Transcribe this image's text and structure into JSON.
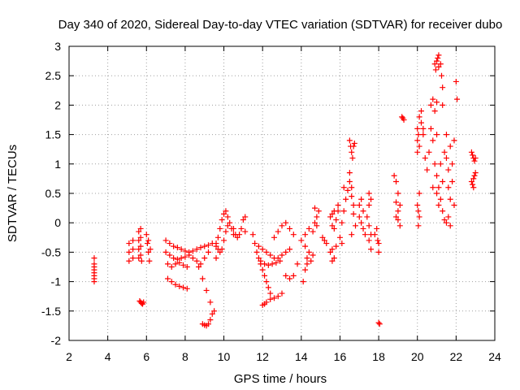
{
  "chart_data": {
    "type": "scatter",
    "title": "Day 340 of 2020, Sidereal Day-to-day VTEC variation (SDTVAR) for receiver dubo",
    "xlabel": "GPS time / hours",
    "ylabel": "SDTVAR / TECUs",
    "xlim": [
      2,
      24
    ],
    "ylim": [
      -2,
      3
    ],
    "xticks": [
      "2",
      "4",
      "6",
      "8",
      "10",
      "12",
      "14",
      "16",
      "18",
      "20",
      "22",
      "24"
    ],
    "yticks": [
      "-2",
      "-1.5",
      "-1",
      "-0.5",
      "0",
      "0.5",
      "1",
      "1.5",
      "2",
      "2.5",
      "3"
    ],
    "grid": true,
    "marker": "+",
    "color": "#ff0000",
    "series": [
      {
        "name": "dubo",
        "points": [
          [
            3.3,
            -0.6
          ],
          [
            3.3,
            -0.7
          ],
          [
            3.3,
            -0.75
          ],
          [
            3.3,
            -0.8
          ],
          [
            3.3,
            -0.85
          ],
          [
            3.3,
            -0.9
          ],
          [
            3.3,
            -0.95
          ],
          [
            3.3,
            -1.0
          ],
          [
            5.1,
            -0.35
          ],
          [
            5.1,
            -0.5
          ],
          [
            5.1,
            -0.65
          ],
          [
            5.3,
            -0.3
          ],
          [
            5.3,
            -0.45
          ],
          [
            5.3,
            -0.6
          ],
          [
            5.6,
            -0.15
          ],
          [
            5.6,
            -0.3
          ],
          [
            5.6,
            -0.45
          ],
          [
            5.6,
            -0.6
          ],
          [
            5.7,
            -0.1
          ],
          [
            5.7,
            -0.25
          ],
          [
            5.7,
            -0.4
          ],
          [
            5.7,
            -0.55
          ],
          [
            5.75,
            -0.65
          ],
          [
            5.65,
            -1.33
          ],
          [
            5.7,
            -1.35
          ],
          [
            5.75,
            -1.37
          ],
          [
            5.8,
            -1.38
          ],
          [
            5.85,
            -1.35
          ],
          [
            6.0,
            -0.2
          ],
          [
            6.05,
            -0.35
          ],
          [
            6.1,
            -0.5
          ],
          [
            6.15,
            -0.65
          ],
          [
            6.2,
            -0.45
          ],
          [
            6.1,
            -0.3
          ],
          [
            7.0,
            -0.3
          ],
          [
            7.2,
            -0.35
          ],
          [
            7.4,
            -0.4
          ],
          [
            7.6,
            -0.42
          ],
          [
            7.8,
            -0.45
          ],
          [
            8.0,
            -0.48
          ],
          [
            8.2,
            -0.5
          ],
          [
            8.4,
            -0.48
          ],
          [
            8.6,
            -0.45
          ],
          [
            8.8,
            -0.42
          ],
          [
            9.0,
            -0.4
          ],
          [
            9.2,
            -0.38
          ],
          [
            9.4,
            -0.35
          ],
          [
            7.0,
            -0.5
          ],
          [
            7.2,
            -0.55
          ],
          [
            7.4,
            -0.6
          ],
          [
            7.6,
            -0.62
          ],
          [
            7.8,
            -0.6
          ],
          [
            8.0,
            -0.58
          ],
          [
            8.2,
            -0.55
          ],
          [
            8.4,
            -0.6
          ],
          [
            8.6,
            -0.65
          ],
          [
            8.8,
            -0.7
          ],
          [
            9.0,
            -0.6
          ],
          [
            9.2,
            -0.5
          ],
          [
            7.1,
            -0.7
          ],
          [
            7.3,
            -0.75
          ],
          [
            7.5,
            -0.7
          ],
          [
            7.7,
            -0.68
          ],
          [
            7.9,
            -0.72
          ],
          [
            8.1,
            -0.75
          ],
          [
            7.1,
            -0.95
          ],
          [
            7.3,
            -1.0
          ],
          [
            7.5,
            -1.05
          ],
          [
            7.7,
            -1.08
          ],
          [
            7.9,
            -1.1
          ],
          [
            8.1,
            -1.12
          ],
          [
            8.7,
            -0.75
          ],
          [
            8.9,
            -0.95
          ],
          [
            9.1,
            -1.15
          ],
          [
            9.3,
            -1.35
          ],
          [
            9.5,
            -1.5
          ],
          [
            8.9,
            -1.72
          ],
          [
            9.0,
            -1.74
          ],
          [
            9.1,
            -1.75
          ],
          [
            9.2,
            -1.72
          ],
          [
            9.3,
            -1.65
          ],
          [
            9.4,
            -1.55
          ],
          [
            9.6,
            -0.4
          ],
          [
            9.6,
            -0.6
          ],
          [
            9.7,
            -0.25
          ],
          [
            9.8,
            -0.1
          ],
          [
            9.9,
            0.05
          ],
          [
            10.0,
            0.15
          ],
          [
            10.1,
            0.2
          ],
          [
            10.2,
            0.1
          ],
          [
            10.3,
            0.0
          ],
          [
            10.4,
            -0.1
          ],
          [
            10.5,
            -0.2
          ],
          [
            9.6,
            -0.35
          ],
          [
            9.7,
            -0.45
          ],
          [
            9.8,
            -0.5
          ],
          [
            9.9,
            -0.45
          ],
          [
            10.0,
            -0.3
          ],
          [
            10.1,
            -0.15
          ],
          [
            10.2,
            -0.05
          ],
          [
            10.5,
            -0.1
          ],
          [
            10.6,
            -0.2
          ],
          [
            10.7,
            -0.25
          ],
          [
            10.8,
            -0.2
          ],
          [
            10.9,
            -0.1
          ],
          [
            11.0,
            0.05
          ],
          [
            11.1,
            0.1
          ],
          [
            11.1,
            -0.15
          ],
          [
            11.5,
            -0.2
          ],
          [
            11.6,
            -0.35
          ],
          [
            11.7,
            -0.5
          ],
          [
            11.8,
            -0.6
          ],
          [
            11.9,
            -0.7
          ],
          [
            12.0,
            -0.8
          ],
          [
            12.1,
            -0.9
          ],
          [
            12.2,
            -1.0
          ],
          [
            12.3,
            -1.1
          ],
          [
            12.4,
            -1.2
          ],
          [
            12.0,
            -1.4
          ],
          [
            12.1,
            -1.38
          ],
          [
            12.2,
            -1.35
          ],
          [
            12.4,
            -1.3
          ],
          [
            12.6,
            -1.28
          ],
          [
            12.8,
            -1.25
          ],
          [
            13.0,
            -1.2
          ],
          [
            11.8,
            -0.4
          ],
          [
            12.0,
            -0.45
          ],
          [
            12.2,
            -0.5
          ],
          [
            12.4,
            -0.55
          ],
          [
            12.6,
            -0.6
          ],
          [
            12.8,
            -0.6
          ],
          [
            13.0,
            -0.55
          ],
          [
            13.2,
            -0.5
          ],
          [
            13.4,
            -0.45
          ],
          [
            11.9,
            -0.65
          ],
          [
            12.1,
            -0.7
          ],
          [
            12.3,
            -0.72
          ],
          [
            12.5,
            -0.7
          ],
          [
            12.7,
            -0.68
          ],
          [
            12.9,
            -0.65
          ],
          [
            12.6,
            -0.25
          ],
          [
            12.8,
            -0.15
          ],
          [
            13.0,
            -0.05
          ],
          [
            13.2,
            0.0
          ],
          [
            13.4,
            -0.1
          ],
          [
            13.6,
            -0.2
          ],
          [
            13.2,
            -0.9
          ],
          [
            13.4,
            -0.95
          ],
          [
            13.6,
            -0.9
          ],
          [
            13.8,
            -0.7
          ],
          [
            14.0,
            -0.3
          ],
          [
            14.2,
            -0.4
          ],
          [
            14.4,
            -0.5
          ],
          [
            14.6,
            -0.55
          ],
          [
            14.2,
            -0.2
          ],
          [
            14.4,
            -0.1
          ],
          [
            14.6,
            -0.15
          ],
          [
            14.3,
            -0.6
          ],
          [
            14.5,
            -0.65
          ],
          [
            14.3,
            -0.7
          ],
          [
            14.2,
            -0.8
          ],
          [
            14.1,
            -1.0
          ],
          [
            14.7,
            0.0
          ],
          [
            14.8,
            -0.05
          ],
          [
            14.8,
            0.1
          ],
          [
            14.9,
            0.2
          ],
          [
            14.7,
            0.25
          ],
          [
            15.1,
            -0.25
          ],
          [
            15.2,
            -0.3
          ],
          [
            15.3,
            -0.35
          ],
          [
            15.5,
            -0.5
          ],
          [
            15.6,
            -0.45
          ],
          [
            15.7,
            -0.6
          ],
          [
            15.6,
            -0.65
          ],
          [
            15.8,
            -0.4
          ],
          [
            15.5,
            0.1
          ],
          [
            15.6,
            0.15
          ],
          [
            15.7,
            0.2
          ],
          [
            15.8,
            0.05
          ],
          [
            15.6,
            -0.05
          ],
          [
            15.7,
            -0.1
          ],
          [
            15.9,
            0.3
          ],
          [
            15.9,
            0.2
          ],
          [
            16.0,
            -0.25
          ],
          [
            16.1,
            0.0
          ],
          [
            16.2,
            0.2
          ],
          [
            16.3,
            0.4
          ],
          [
            16.4,
            0.55
          ],
          [
            16.2,
            0.6
          ],
          [
            16.1,
            -0.35
          ],
          [
            16.5,
            0.85
          ],
          [
            16.5,
            0.7
          ],
          [
            16.6,
            0.6
          ],
          [
            16.6,
            0.45
          ],
          [
            16.7,
            0.3
          ],
          [
            16.7,
            0.15
          ],
          [
            16.8,
            -0.05
          ],
          [
            16.6,
            -0.2
          ],
          [
            16.5,
            1.4
          ],
          [
            16.55,
            1.3
          ],
          [
            16.6,
            1.2
          ],
          [
            16.65,
            1.1
          ],
          [
            16.7,
            1.3
          ],
          [
            16.75,
            1.35
          ],
          [
            17.0,
            0.1
          ],
          [
            17.1,
            0.0
          ],
          [
            17.2,
            -0.1
          ],
          [
            17.3,
            -0.2
          ],
          [
            17.0,
            0.3
          ],
          [
            17.1,
            0.4
          ],
          [
            17.2,
            0.2
          ],
          [
            17.4,
            0.1
          ],
          [
            17.5,
            -0.05
          ],
          [
            17.6,
            -0.2
          ],
          [
            17.5,
            -0.3
          ],
          [
            17.6,
            -0.45
          ],
          [
            17.5,
            0.3
          ],
          [
            17.6,
            0.4
          ],
          [
            17.5,
            0.5
          ],
          [
            17.8,
            -0.2
          ],
          [
            17.9,
            -0.1
          ],
          [
            17.95,
            -0.3
          ],
          [
            18.0,
            -0.35
          ],
          [
            18.0,
            -0.5
          ],
          [
            18.0,
            -1.7
          ],
          [
            18.05,
            -1.72
          ],
          [
            18.8,
            0.8
          ],
          [
            18.9,
            0.7
          ],
          [
            19.0,
            0.5
          ],
          [
            18.9,
            0.35
          ],
          [
            19.0,
            0.2
          ],
          [
            19.0,
            0.05
          ],
          [
            18.9,
            0.1
          ],
          [
            19.1,
            0.3
          ],
          [
            19.1,
            -0.05
          ],
          [
            19.2,
            1.8
          ],
          [
            19.25,
            1.78
          ],
          [
            19.3,
            1.75
          ],
          [
            20.0,
            1.2
          ],
          [
            20.0,
            1.4
          ],
          [
            20.0,
            1.6
          ],
          [
            20.05,
            1.5
          ],
          [
            20.1,
            1.3
          ],
          [
            20.1,
            1.8
          ],
          [
            20.2,
            1.7
          ],
          [
            20.2,
            1.9
          ],
          [
            20.3,
            1.5
          ],
          [
            20.3,
            1.6
          ],
          [
            20.0,
            0.3
          ],
          [
            20.05,
            0.2
          ],
          [
            20.1,
            0.1
          ],
          [
            20.05,
            -0.05
          ],
          [
            20.1,
            0.5
          ],
          [
            20.4,
            1.1
          ],
          [
            20.5,
            0.9
          ],
          [
            20.6,
            1.2
          ],
          [
            20.7,
            1.6
          ],
          [
            20.8,
            1.4
          ],
          [
            20.9,
            1.0
          ],
          [
            20.8,
            0.6
          ],
          [
            20.7,
            2.0
          ],
          [
            20.8,
            2.1
          ],
          [
            20.9,
            1.9
          ],
          [
            21.0,
            2.05
          ],
          [
            21.0,
            1.5
          ],
          [
            20.9,
            2.7
          ],
          [
            20.95,
            2.6
          ],
          [
            21.0,
            2.75
          ],
          [
            21.05,
            2.8
          ],
          [
            21.1,
            2.85
          ],
          [
            21.1,
            2.65
          ],
          [
            21.0,
            0.8
          ],
          [
            21.0,
            0.5
          ],
          [
            21.1,
            0.3
          ],
          [
            21.1,
            0.6
          ],
          [
            21.2,
            1.0
          ],
          [
            21.2,
            0.4
          ],
          [
            21.3,
            0.2
          ],
          [
            21.3,
            0.7
          ],
          [
            21.4,
            0.05
          ],
          [
            21.4,
            1.2
          ],
          [
            21.2,
            2.7
          ],
          [
            21.25,
            2.5
          ],
          [
            21.3,
            2.3
          ],
          [
            21.3,
            2.0
          ],
          [
            21.5,
            1.5
          ],
          [
            21.5,
            1.1
          ],
          [
            21.6,
            0.9
          ],
          [
            21.6,
            0.6
          ],
          [
            21.7,
            0.4
          ],
          [
            21.7,
            1.3
          ],
          [
            21.8,
            1.0
          ],
          [
            21.8,
            0.7
          ],
          [
            21.9,
            1.4
          ],
          [
            21.9,
            0.3
          ],
          [
            21.5,
            0.0
          ],
          [
            21.6,
            0.1
          ],
          [
            21.7,
            -0.05
          ],
          [
            22.0,
            2.4
          ],
          [
            22.05,
            2.1
          ],
          [
            22.8,
            1.2
          ],
          [
            22.85,
            1.15
          ],
          [
            22.9,
            1.1
          ],
          [
            22.95,
            1.05
          ],
          [
            23.0,
            1.1
          ],
          [
            22.8,
            0.7
          ],
          [
            22.85,
            0.65
          ],
          [
            22.9,
            0.75
          ],
          [
            22.95,
            0.8
          ],
          [
            23.0,
            0.85
          ],
          [
            22.9,
            0.6
          ]
        ]
      }
    ]
  }
}
